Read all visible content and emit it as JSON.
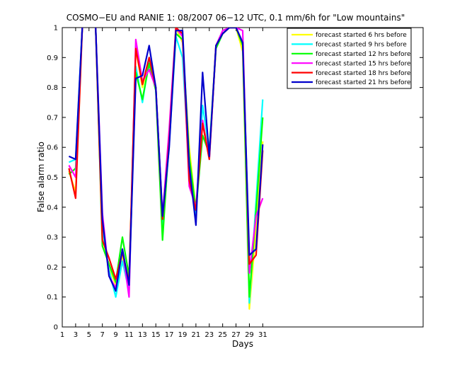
{
  "chart_data": {
    "type": "line",
    "title": "COSMO−EU and RANIE 1: 08/2007 06−12 UTC, 0.1 mm/6h for \"Low mountains\"",
    "xlabel": "Days",
    "ylabel": "False alarm ratio",
    "xlim": [
      1,
      55
    ],
    "ylim": [
      0,
      1
    ],
    "xticks": [
      1,
      3,
      5,
      7,
      9,
      11,
      13,
      15,
      17,
      19,
      21,
      23,
      25,
      27,
      29,
      31
    ],
    "yticks": [
      0,
      0.1,
      0.2,
      0.3,
      0.4,
      0.5,
      0.6,
      0.7,
      0.8,
      0.9,
      1
    ],
    "ytick_labels": [
      "0",
      "0.1",
      "0.2",
      "0.3",
      "0.4",
      "0.5",
      "0.6",
      "0.7",
      "0.8",
      "0.9",
      "1"
    ],
    "grid": false,
    "legend_position": "top-right",
    "x": [
      2,
      3,
      4,
      5,
      6,
      7,
      8,
      9,
      10,
      11,
      12,
      13,
      14,
      15,
      16,
      17,
      18,
      19,
      20,
      21,
      22,
      23,
      24,
      25,
      26,
      27,
      28,
      29,
      30,
      31
    ],
    "series": [
      {
        "name": "forecast started 6 hrs before",
        "color": "#ffff00",
        "values": [
          0.52,
          0.45,
          1.0,
          null,
          1.0,
          0.3,
          0.2,
          0.14,
          0.24,
          0.13,
          0.93,
          0.8,
          0.89,
          0.8,
          0.35,
          0.64,
          1.0,
          0.95,
          0.6,
          0.39,
          0.68,
          0.59,
          0.94,
          0.98,
          1.0,
          1.0,
          0.92,
          0.06,
          0.33,
          0.62
        ]
      },
      {
        "name": "forecast started 9 hrs before",
        "color": "#00ffff",
        "values": [
          0.55,
          0.56,
          1.0,
          null,
          1.0,
          0.33,
          0.19,
          0.1,
          0.22,
          0.12,
          0.87,
          0.75,
          0.89,
          0.79,
          0.32,
          0.61,
          0.97,
          0.9,
          0.52,
          0.37,
          0.74,
          0.59,
          0.93,
          0.98,
          1.0,
          1.0,
          0.95,
          0.08,
          0.42,
          0.76
        ]
      },
      {
        "name": "forecast started 12 hrs before",
        "color": "#00ff00",
        "values": [
          0.51,
          0.53,
          1.0,
          null,
          1.0,
          0.27,
          0.21,
          0.15,
          0.3,
          0.17,
          0.85,
          0.76,
          0.88,
          0.79,
          0.29,
          0.63,
          0.98,
          0.96,
          0.57,
          0.39,
          0.64,
          0.58,
          0.93,
          0.98,
          1.0,
          1.0,
          0.94,
          0.1,
          0.39,
          0.7
        ]
      },
      {
        "name": "forecast started 15 hrs before",
        "color": "#ff00ff",
        "values": [
          0.54,
          0.5,
          1.0,
          null,
          1.0,
          0.38,
          0.17,
          0.13,
          0.26,
          0.1,
          0.96,
          0.82,
          0.86,
          0.8,
          0.37,
          0.66,
          1.0,
          0.97,
          0.47,
          0.4,
          0.69,
          0.56,
          0.94,
          0.99,
          1.0,
          1.0,
          0.99,
          0.18,
          0.37,
          0.43
        ]
      },
      {
        "name": "forecast started 18 hrs before",
        "color": "#ff0000",
        "values": [
          0.53,
          0.43,
          1.0,
          null,
          1.0,
          0.29,
          0.23,
          0.16,
          0.25,
          0.15,
          0.93,
          0.81,
          0.9,
          0.8,
          0.36,
          0.62,
          1.0,
          0.98,
          0.49,
          0.39,
          0.68,
          0.56,
          0.94,
          0.98,
          1.0,
          1.0,
          0.95,
          0.21,
          0.24,
          0.59
        ]
      },
      {
        "name": "forecast started 21 hrs before",
        "color": "#0000cc",
        "values": [
          0.57,
          0.56,
          1.0,
          null,
          1.0,
          0.36,
          0.17,
          0.12,
          0.26,
          0.14,
          0.83,
          0.84,
          0.94,
          0.8,
          0.37,
          0.6,
          0.99,
          0.99,
          0.54,
          0.34,
          0.85,
          0.57,
          0.94,
          0.98,
          1.0,
          1.0,
          0.95,
          0.24,
          0.26,
          0.61
        ]
      }
    ]
  }
}
